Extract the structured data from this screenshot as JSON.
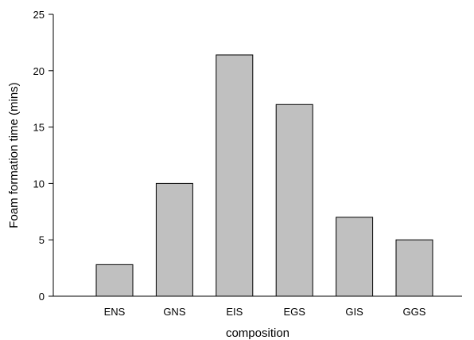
{
  "chart_data": {
    "type": "bar",
    "categories": [
      "ENS",
      "GNS",
      "EIS",
      "EGS",
      "GIS",
      "GGS"
    ],
    "values": [
      2.8,
      10.0,
      21.4,
      17.0,
      7.0,
      5.0
    ],
    "xlabel": "composition",
    "ylabel": "Foam formation time (mins)",
    "ylim": [
      0,
      25
    ],
    "yticks": [
      0,
      5,
      10,
      15,
      20,
      25
    ],
    "grid": false,
    "bar_color": "#c0c0c0",
    "bar_edge_color": "#000000"
  }
}
